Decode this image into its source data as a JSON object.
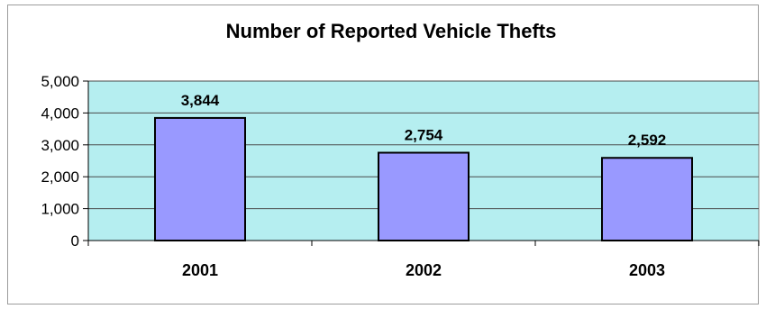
{
  "chart_data": {
    "type": "bar",
    "title": "Number of Reported Vehicle Thefts",
    "xlabel": "",
    "ylabel": "",
    "categories": [
      "2001",
      "2002",
      "2003"
    ],
    "values": [
      3844,
      2754,
      2592
    ],
    "data_labels": [
      "3,844",
      "2,754",
      "2,592"
    ],
    "y_ticks": [
      0,
      1000,
      2000,
      3000,
      4000,
      5000
    ],
    "y_tick_labels": [
      "0",
      "1,000",
      "2,000",
      "3,000",
      "4,000",
      "5,000"
    ],
    "ylim": [
      0,
      5000
    ],
    "grid": true,
    "legend": "none",
    "colors": {
      "plot_background": "#b5eef0",
      "bar_fill": "#9999ff",
      "bar_stroke": "#000000",
      "gridline": "#4a4a4a"
    }
  }
}
